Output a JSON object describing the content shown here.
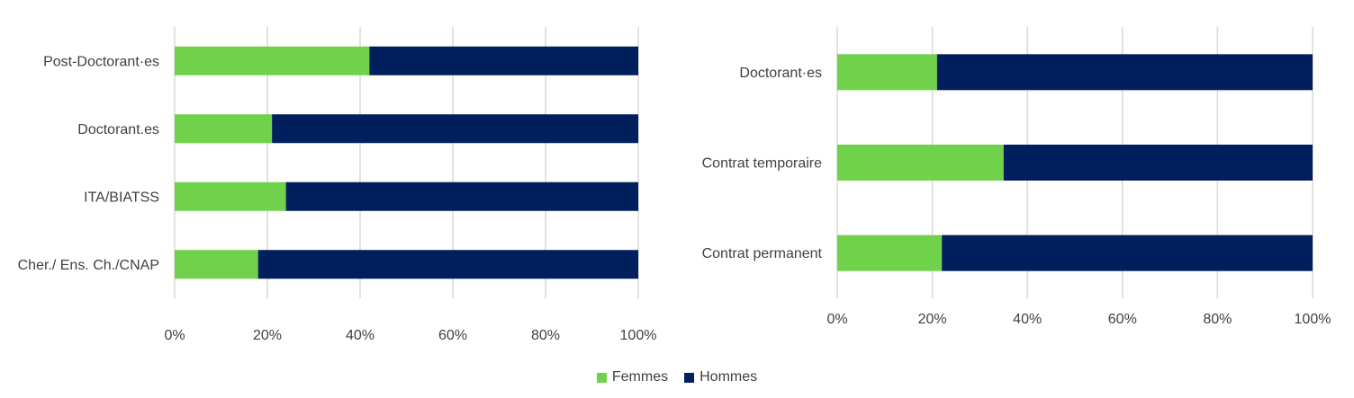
{
  "colors": {
    "Femmes": "#70d14a",
    "Hommes": "#001f5c",
    "grid": "#d9d9d9",
    "text": "#404040"
  },
  "legend": [
    {
      "name": "Femmes",
      "color": "#70d14a"
    },
    {
      "name": "Hommes",
      "color": "#001f5c"
    }
  ],
  "chart_data": [
    {
      "type": "bar",
      "orientation": "horizontal",
      "stacked": "percent",
      "categories": [
        "Post-Doctorant·es",
        "Doctorant.es",
        "ITA/BIATSS",
        "Cher./ Ens. Ch./CNAP"
      ],
      "series": [
        {
          "name": "Femmes",
          "values": [
            42,
            21,
            24,
            18
          ]
        },
        {
          "name": "Hommes",
          "values": [
            58,
            79,
            76,
            82
          ]
        }
      ],
      "xlim": [
        0,
        100
      ],
      "xticks": [
        "0%",
        "20%",
        "40%",
        "60%",
        "80%",
        "100%"
      ],
      "grid": "vertical"
    },
    {
      "type": "bar",
      "orientation": "horizontal",
      "stacked": "percent",
      "categories": [
        "Doctorant·es",
        "Contrat temporaire",
        "Contrat permanent"
      ],
      "series": [
        {
          "name": "Femmes",
          "values": [
            21,
            35,
            22
          ]
        },
        {
          "name": "Hommes",
          "values": [
            79,
            65,
            78
          ]
        }
      ],
      "xlim": [
        0,
        100
      ],
      "xticks": [
        "0%",
        "20%",
        "40%",
        "60%",
        "80%",
        "100%"
      ],
      "grid": "vertical"
    }
  ]
}
